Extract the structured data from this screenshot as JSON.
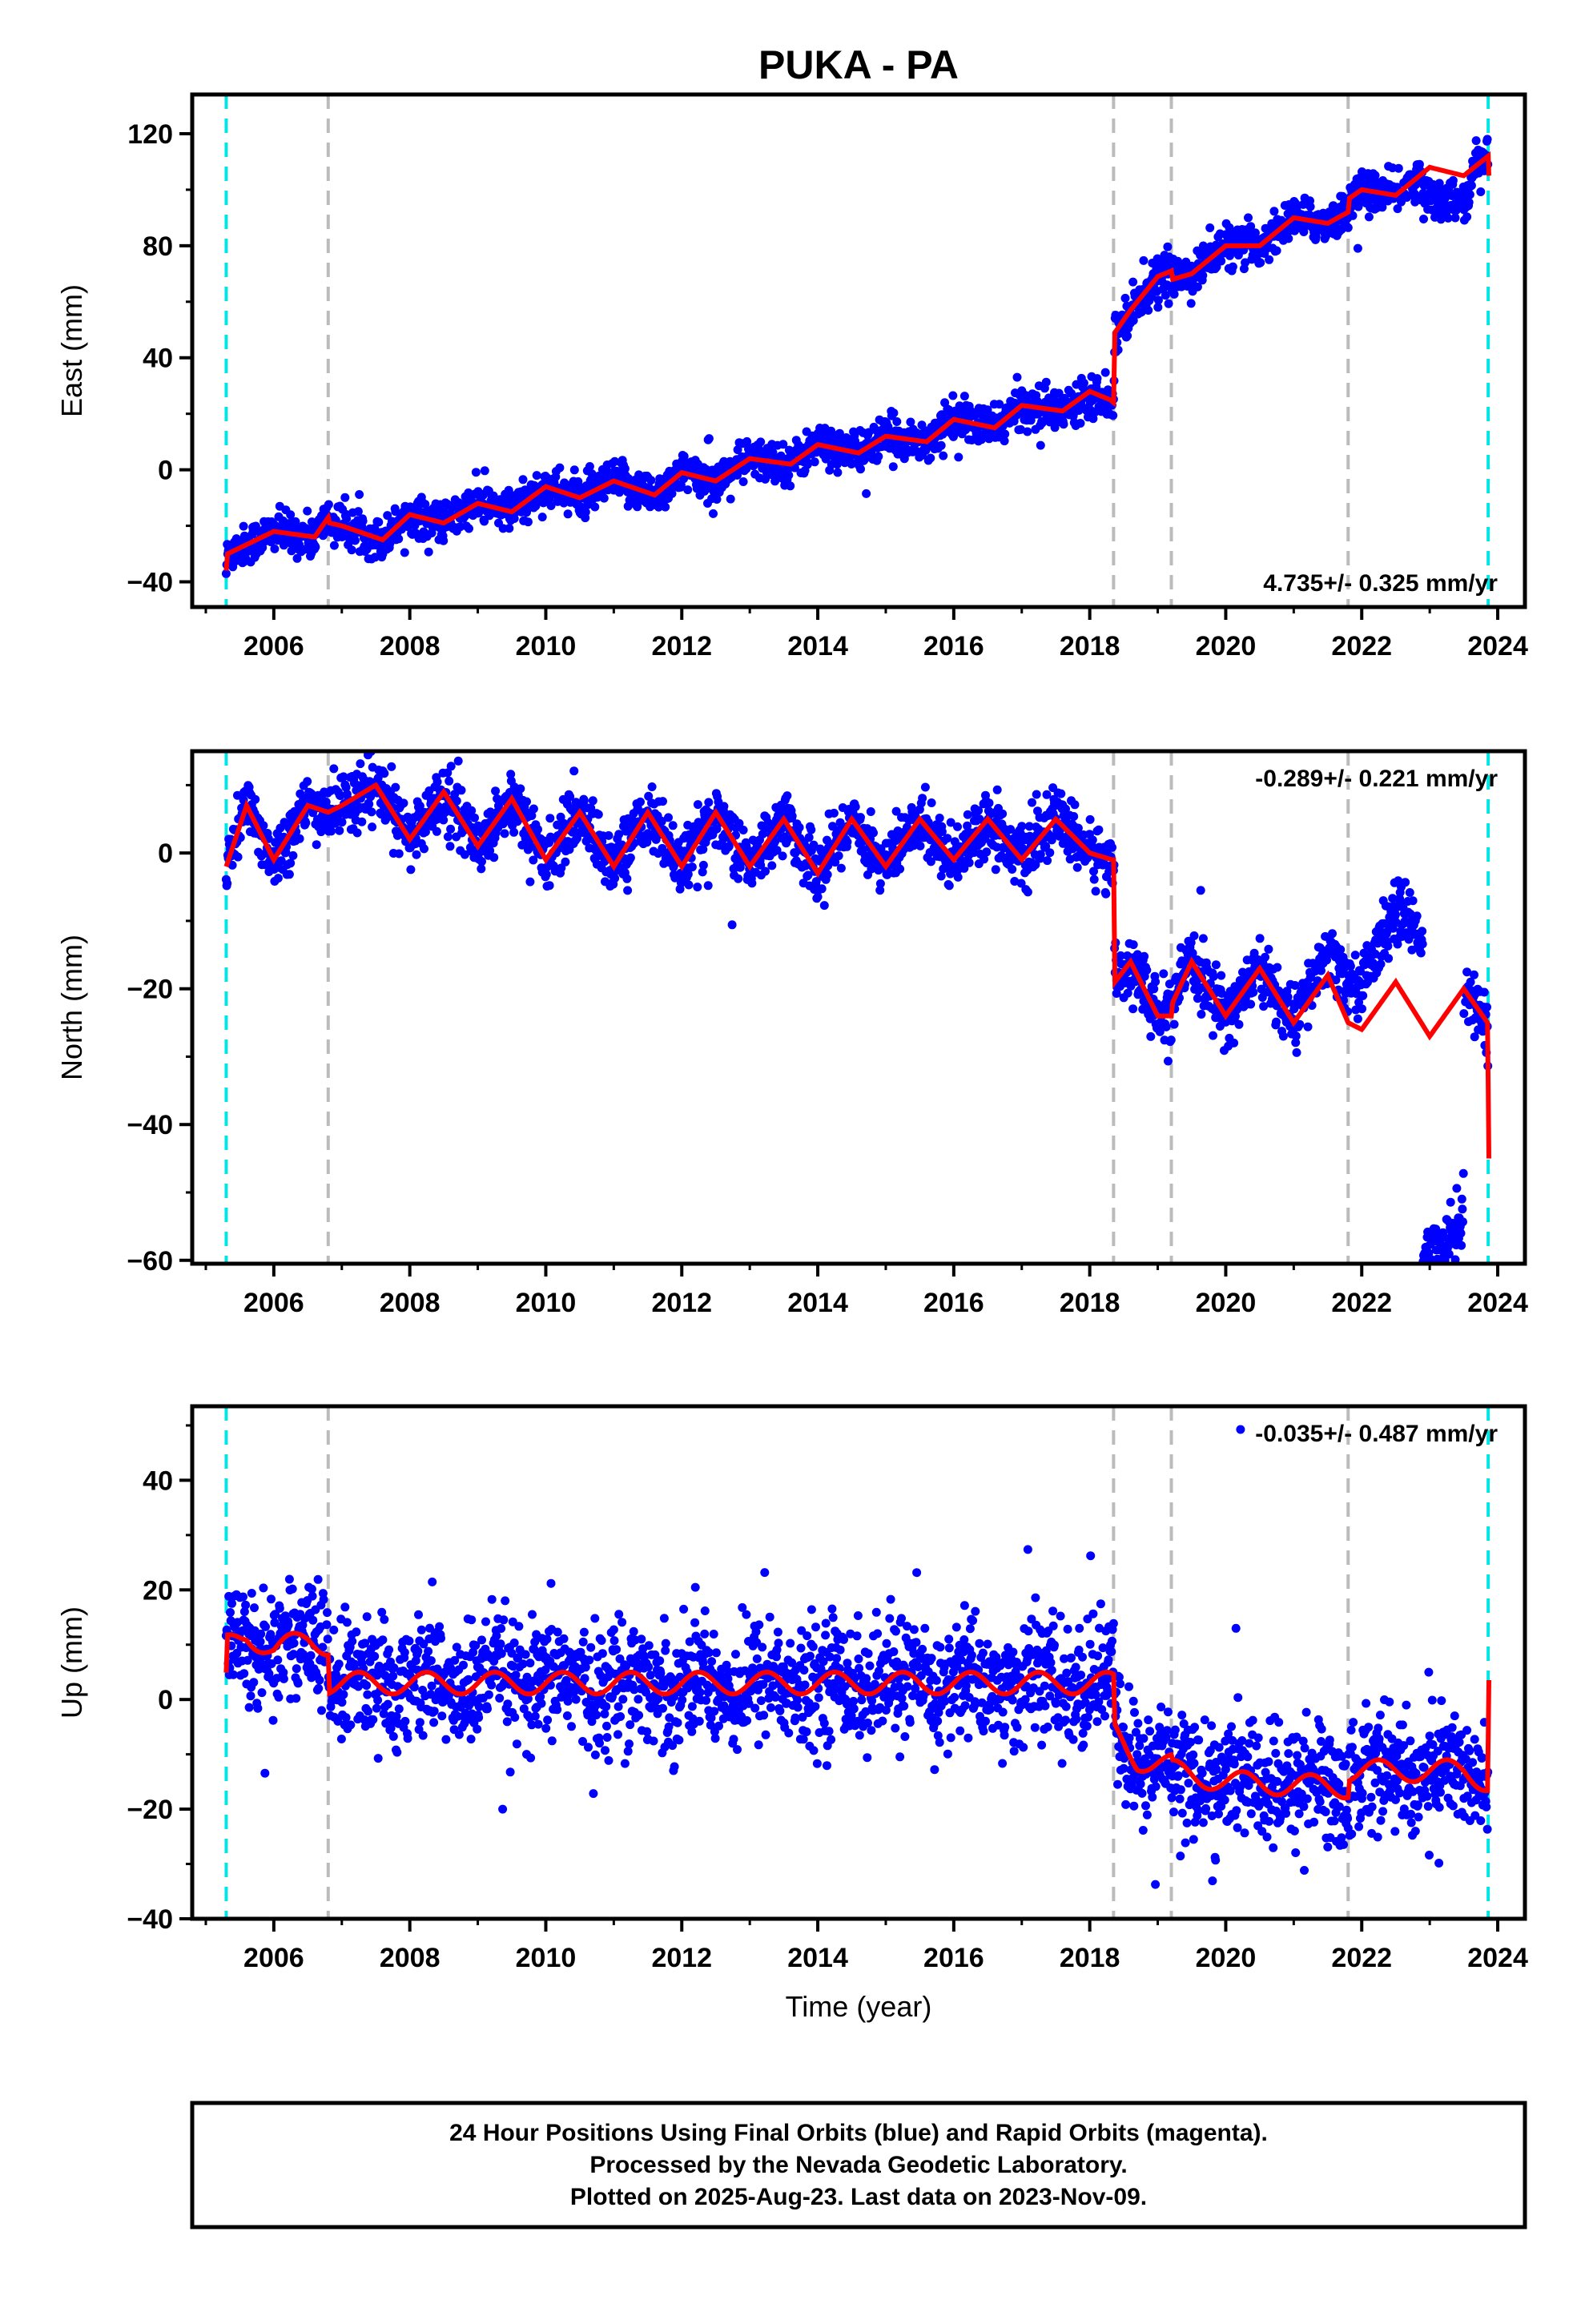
{
  "figure": {
    "title": "PUKA - PA",
    "xlabel": "Time (year)",
    "footer": [
      "24 Hour Positions Using Final Orbits (blue) and Rapid Orbits (magenta).",
      "Processed by the Nevada Geodetic Laboratory.",
      "Plotted on 2025-Aug-23. Last data on 2023-Nov-09."
    ]
  },
  "colors": {
    "data_points": "#0000ff",
    "model_fit": "#ff0000",
    "data_span_marker": "#00e5e5",
    "offset_marker": "#bbbbbb",
    "frame": "#000000"
  },
  "chart_data": [
    {
      "type": "scatter",
      "component": "East",
      "ylabel": "East (mm)",
      "xlim": [
        2004.8,
        2024.4
      ],
      "ylim": [
        -49,
        134
      ],
      "xticks": [
        2006,
        2008,
        2010,
        2012,
        2014,
        2016,
        2018,
        2020,
        2022,
        2024
      ],
      "yticks": [
        -40,
        0,
        40,
        80,
        120
      ],
      "grid": false,
      "rate_label": "4.735+/- 0.325 mm/yr",
      "rate_position": "bottom-right",
      "data_span": [
        2005.3,
        2023.86
      ],
      "offset_epochs": [
        2006.8,
        2018.35,
        2019.2,
        2021.8
      ],
      "model_control_points": [
        [
          2005.3,
          -36
        ],
        [
          2005.32,
          -30
        ],
        [
          2006.0,
          -22
        ],
        [
          2006.6,
          -24
        ],
        [
          2006.8,
          -17
        ],
        [
          2006.82,
          -19
        ],
        [
          2007.0,
          -20
        ],
        [
          2007.6,
          -25
        ],
        [
          2008.0,
          -16
        ],
        [
          2008.5,
          -19
        ],
        [
          2009.0,
          -12
        ],
        [
          2009.5,
          -15
        ],
        [
          2010.0,
          -6
        ],
        [
          2010.5,
          -10
        ],
        [
          2011.0,
          -4
        ],
        [
          2011.6,
          -9
        ],
        [
          2012.0,
          -1
        ],
        [
          2012.5,
          -4
        ],
        [
          2013.0,
          4
        ],
        [
          2013.6,
          2
        ],
        [
          2014.0,
          9
        ],
        [
          2014.6,
          6
        ],
        [
          2015.0,
          12
        ],
        [
          2015.6,
          10
        ],
        [
          2016.0,
          18
        ],
        [
          2016.6,
          15
        ],
        [
          2017.0,
          23
        ],
        [
          2017.6,
          21
        ],
        [
          2018.0,
          28
        ],
        [
          2018.3,
          25
        ],
        [
          2018.35,
          24
        ],
        [
          2018.37,
          49
        ],
        [
          2018.6,
          57
        ],
        [
          2019.0,
          69
        ],
        [
          2019.2,
          71
        ],
        [
          2019.22,
          68
        ],
        [
          2019.5,
          70
        ],
        [
          2020.0,
          80
        ],
        [
          2020.5,
          80
        ],
        [
          2021.0,
          90
        ],
        [
          2021.5,
          88
        ],
        [
          2021.8,
          92
        ],
        [
          2021.82,
          97
        ],
        [
          2022.0,
          100
        ],
        [
          2022.5,
          98
        ],
        [
          2023.0,
          108
        ],
        [
          2023.5,
          105
        ],
        [
          2023.86,
          112
        ],
        [
          2023.87,
          105
        ]
      ],
      "scatter_scale_mm": 3.5
    },
    {
      "type": "scatter",
      "component": "North",
      "ylabel": "North (mm)",
      "xlim": [
        2004.8,
        2024.4
      ],
      "ylim": [
        -60.5,
        15
      ],
      "xticks": [
        2006,
        2008,
        2010,
        2012,
        2014,
        2016,
        2018,
        2020,
        2022,
        2024
      ],
      "yticks": [
        -60,
        -40,
        -20,
        0
      ],
      "grid": false,
      "rate_label": "-0.289+/- 0.221 mm/yr",
      "rate_position": "top-right",
      "data_span": [
        2005.3,
        2023.86
      ],
      "offset_epochs": [
        2006.8,
        2018.35,
        2019.2,
        2021.8
      ],
      "model_control_points": [
        [
          2005.3,
          -2
        ],
        [
          2005.6,
          7
        ],
        [
          2006.0,
          -1
        ],
        [
          2006.5,
          7
        ],
        [
          2006.8,
          6
        ],
        [
          2007.0,
          7
        ],
        [
          2007.5,
          10
        ],
        [
          2008.0,
          2
        ],
        [
          2008.5,
          9
        ],
        [
          2009.0,
          1
        ],
        [
          2009.5,
          8
        ],
        [
          2010.0,
          -1
        ],
        [
          2010.5,
          6
        ],
        [
          2011.0,
          -2
        ],
        [
          2011.5,
          6
        ],
        [
          2012.0,
          -2
        ],
        [
          2012.5,
          6
        ],
        [
          2013.0,
          -2
        ],
        [
          2013.5,
          5
        ],
        [
          2014.0,
          -3
        ],
        [
          2014.5,
          5
        ],
        [
          2015.0,
          -2
        ],
        [
          2015.5,
          5
        ],
        [
          2016.0,
          -1
        ],
        [
          2016.5,
          5
        ],
        [
          2017.0,
          -1
        ],
        [
          2017.5,
          5
        ],
        [
          2018.0,
          0
        ],
        [
          2018.33,
          -1
        ],
        [
          2018.35,
          -1
        ],
        [
          2018.37,
          -19
        ],
        [
          2018.6,
          -16
        ],
        [
          2019.0,
          -24
        ],
        [
          2019.2,
          -24
        ],
        [
          2019.22,
          -22
        ],
        [
          2019.5,
          -16
        ],
        [
          2020.0,
          -24
        ],
        [
          2020.5,
          -17
        ],
        [
          2021.0,
          -25
        ],
        [
          2021.5,
          -18
        ],
        [
          2021.8,
          -25
        ],
        [
          2022.0,
          -26
        ],
        [
          2022.5,
          -19
        ],
        [
          2023.0,
          -27
        ],
        [
          2023.5,
          -20
        ],
        [
          2023.85,
          -25
        ],
        [
          2023.87,
          -45
        ]
      ],
      "scatter_scale_mm": 2.2
    },
    {
      "type": "scatter",
      "component": "Up",
      "ylabel": "Up (mm)",
      "xlim": [
        2004.8,
        2024.4
      ],
      "ylim": [
        -40,
        53.5
      ],
      "xticks": [
        2006,
        2008,
        2010,
        2012,
        2014,
        2016,
        2018,
        2020,
        2022,
        2024
      ],
      "yticks": [
        -40,
        -20,
        0,
        20,
        40
      ],
      "grid": false,
      "rate_label": "-0.035+/- 0.487 mm/yr",
      "rate_position": "top-right",
      "data_span": [
        2005.3,
        2023.86
      ],
      "offset_epochs": [
        2006.8,
        2018.35,
        2019.2,
        2021.8
      ],
      "model_control_points": [
        [
          2005.3,
          3
        ],
        [
          2005.32,
          10
        ],
        [
          2005.6,
          12
        ],
        [
          2006.0,
          9
        ],
        [
          2006.5,
          11
        ],
        [
          2006.8,
          10
        ],
        [
          2006.82,
          3
        ],
        [
          2018.33,
          3
        ],
        [
          2018.35,
          3
        ],
        [
          2018.37,
          -6
        ],
        [
          2018.7,
          -11
        ],
        [
          2019.2,
          -12
        ],
        [
          2019.22,
          -13
        ],
        [
          2020.0,
          -15
        ],
        [
          2021.8,
          -16
        ],
        [
          2021.82,
          -13
        ],
        [
          2023.5,
          -13
        ],
        [
          2023.85,
          -15
        ],
        [
          2023.87,
          5
        ]
      ],
      "model_annual_amplitude_mm": 2,
      "scatter_scale_mm": 5.5
    }
  ]
}
